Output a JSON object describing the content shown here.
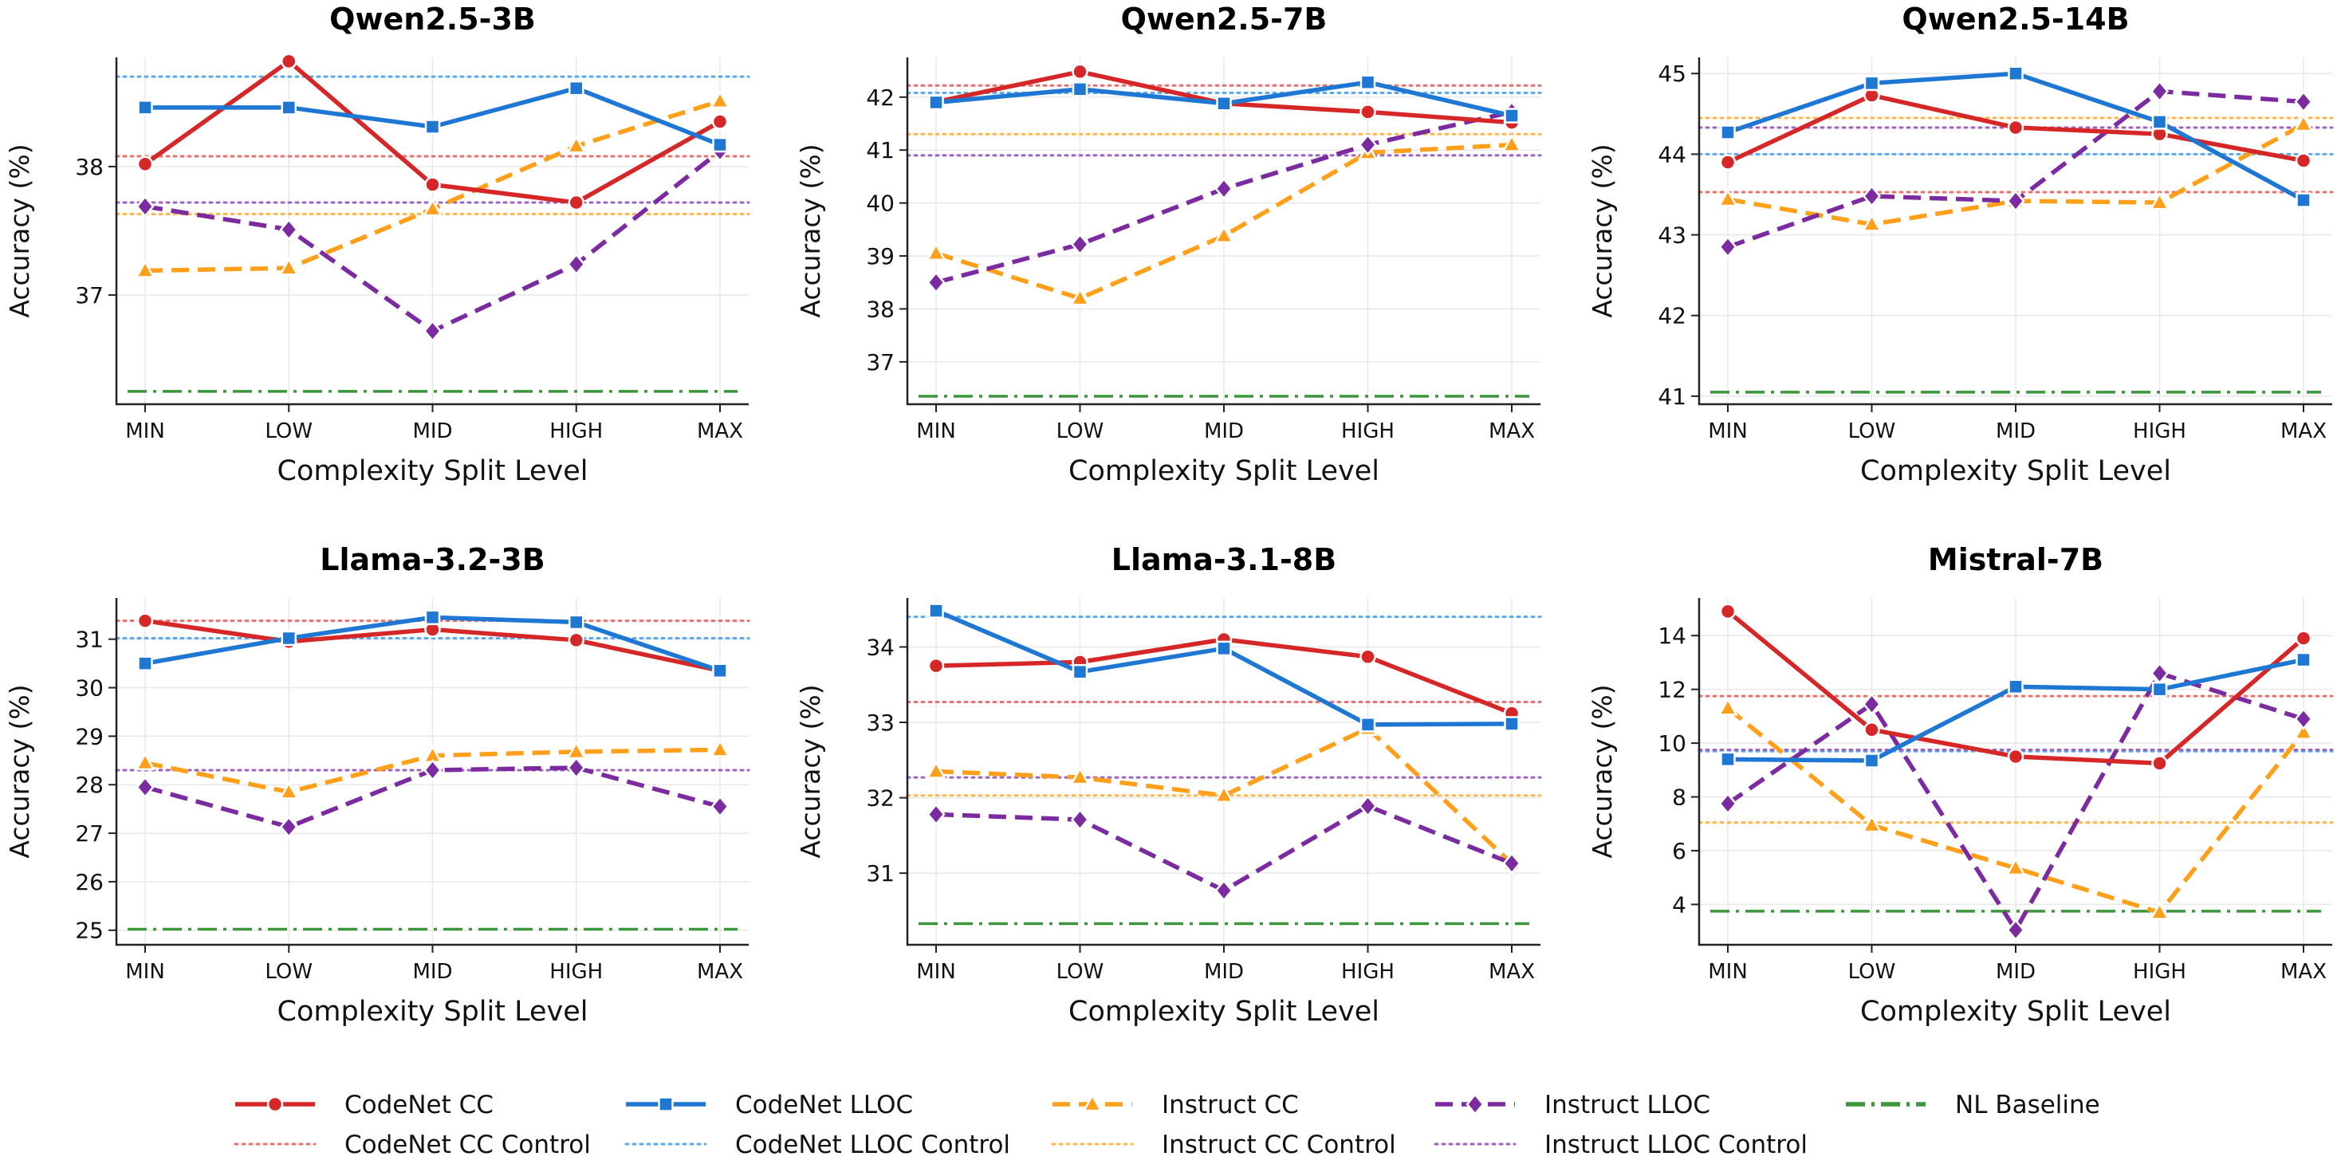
{
  "figure": {
    "xlabel": "Complexity Split Level",
    "ylabel": "Accuracy (%)",
    "categories": [
      "MIN",
      "LOW",
      "MID",
      "HIGH",
      "MAX"
    ]
  },
  "series_styles": [
    {
      "key": "cc",
      "name": "CodeNet CC",
      "color": "#d62728",
      "dash": "solid",
      "marker": "circle"
    },
    {
      "key": "lloc",
      "name": "CodeNet LLOC",
      "color": "#1f77d4",
      "dash": "solid",
      "marker": "square"
    },
    {
      "key": "icc",
      "name": "Instruct CC",
      "color": "#ff9f1a",
      "dash": "dashed",
      "marker": "triangle"
    },
    {
      "key": "illoc",
      "name": "Instruct LLOC",
      "color": "#7b2aa0",
      "dash": "dashed",
      "marker": "diamond"
    },
    {
      "key": "nl",
      "name": "NL Baseline",
      "color": "#3c963c",
      "dash": "dashdot",
      "marker": "none"
    }
  ],
  "control_styles": [
    {
      "key": "cc",
      "name": "CodeNet CC Control",
      "color": "#e8706e"
    },
    {
      "key": "lloc",
      "name": "CodeNet LLOC Control",
      "color": "#5aa8ee"
    },
    {
      "key": "icc",
      "name": "Instruct CC Control",
      "color": "#ffb64a"
    },
    {
      "key": "illoc",
      "name": "Instruct LLOC Control",
      "color": "#9e62c0"
    }
  ],
  "chart_data": [
    {
      "type": "line",
      "title": "Qwen2.5-3B",
      "ylim": [
        36.15,
        38.85
      ],
      "yticks": [
        37,
        38
      ],
      "series": {
        "cc": [
          38.02,
          38.82,
          37.86,
          37.72,
          38.35
        ],
        "lloc": [
          38.46,
          38.46,
          38.31,
          38.61,
          38.17
        ],
        "icc": [
          37.19,
          37.21,
          37.67,
          38.16,
          38.51
        ],
        "illoc": [
          37.69,
          37.51,
          36.72,
          37.24,
          38.12
        ]
      },
      "controls": {
        "cc": 38.08,
        "lloc": 38.7,
        "icc": 37.63,
        "illoc": 37.72
      },
      "nl_baseline": 36.25
    },
    {
      "type": "line",
      "title": "Qwen2.5-7B",
      "ylim": [
        36.2,
        42.75
      ],
      "yticks": [
        37,
        38,
        39,
        40,
        41,
        42
      ],
      "series": {
        "cc": [
          41.91,
          42.48,
          41.88,
          41.72,
          41.52
        ],
        "lloc": [
          41.9,
          42.15,
          41.88,
          42.28,
          41.65
        ],
        "icc": [
          39.05,
          38.2,
          39.38,
          40.95,
          41.1
        ],
        "illoc": [
          38.5,
          39.22,
          40.27,
          41.1,
          41.72
        ]
      },
      "controls": {
        "cc": 42.22,
        "lloc": 42.08,
        "icc": 41.3,
        "illoc": 40.9
      },
      "nl_baseline": 36.35
    },
    {
      "type": "line",
      "title": "Qwen2.5-14B",
      "ylim": [
        40.9,
        45.2
      ],
      "yticks": [
        41,
        42,
        43,
        44,
        45
      ],
      "series": {
        "cc": [
          43.9,
          44.73,
          44.33,
          44.25,
          43.92
        ],
        "lloc": [
          44.27,
          44.88,
          45.0,
          44.4,
          43.43
        ],
        "icc": [
          43.44,
          43.13,
          43.42,
          43.4,
          44.37
        ],
        "illoc": [
          42.85,
          43.48,
          43.42,
          44.78,
          44.65
        ]
      },
      "controls": {
        "cc": 43.53,
        "lloc": 44.0,
        "icc": 44.45,
        "illoc": 44.33
      },
      "nl_baseline": 41.05
    },
    {
      "type": "line",
      "title": "Llama-3.2-3B",
      "ylim": [
        24.7,
        31.85
      ],
      "yticks": [
        25,
        26,
        27,
        28,
        29,
        30,
        31
      ],
      "series": {
        "cc": [
          31.38,
          30.95,
          31.2,
          30.98,
          30.35
        ],
        "lloc": [
          30.5,
          31.02,
          31.45,
          31.35,
          30.35
        ],
        "icc": [
          28.45,
          27.85,
          28.6,
          28.68,
          28.72
        ],
        "illoc": [
          27.95,
          27.13,
          28.3,
          28.35,
          27.55
        ]
      },
      "controls": {
        "cc": 31.38,
        "lloc": 31.02,
        "icc": 28.3,
        "illoc": 28.3
      },
      "nl_baseline": 25.02
    },
    {
      "type": "line",
      "title": "Llama-3.1-8B",
      "ylim": [
        30.05,
        34.65
      ],
      "yticks": [
        31,
        32,
        33,
        34
      ],
      "series": {
        "cc": [
          33.75,
          33.8,
          34.1,
          33.87,
          33.12
        ],
        "lloc": [
          34.48,
          33.67,
          33.98,
          32.97,
          32.98
        ],
        "icc": [
          32.35,
          32.27,
          32.03,
          32.92,
          31.13
        ],
        "illoc": [
          31.78,
          31.71,
          30.77,
          31.89,
          31.13
        ]
      },
      "controls": {
        "cc": 33.27,
        "lloc": 34.4,
        "icc": 32.03,
        "illoc": 32.27
      },
      "nl_baseline": 30.33
    },
    {
      "type": "line",
      "title": "Mistral-7B",
      "ylim": [
        2.5,
        15.4
      ],
      "yticks": [
        4,
        6,
        8,
        10,
        12,
        14
      ],
      "series": {
        "cc": [
          14.9,
          10.5,
          9.5,
          9.25,
          13.9
        ],
        "lloc": [
          9.4,
          9.35,
          12.1,
          12.0,
          13.1
        ],
        "icc": [
          11.3,
          6.95,
          5.35,
          3.7,
          10.4
        ],
        "illoc": [
          7.75,
          11.45,
          3.05,
          12.6,
          10.9
        ]
      },
      "controls": {
        "cc": 11.75,
        "lloc": 9.7,
        "icc": 7.05,
        "illoc": 9.75
      },
      "nl_baseline": 3.75
    }
  ]
}
